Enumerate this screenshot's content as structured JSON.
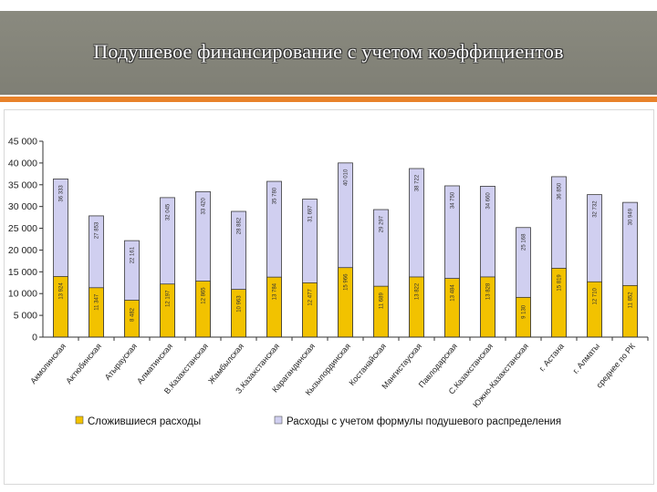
{
  "slide": {
    "title": "Подушевое финансирование с учетом коэффициентов"
  },
  "colors": {
    "accent": "#e8822a",
    "title_bar": "#84847a",
    "series_actual": "#f2c200",
    "series_formula": "#d0cff0"
  },
  "chart_data": {
    "type": "bar",
    "stacked": false,
    "overlapped": true,
    "categories": [
      "Акмолинская",
      "Актюбинская",
      "Атырауская",
      "Алматинская",
      "В.Казахстанская",
      "Жамбылская",
      "З.Казахстанская",
      "Карагандинская",
      "Кызылординская",
      "Костанайская",
      "Мангистауская",
      "Павлодарская",
      "С.Казахстанская",
      "Южно-Казахстанская",
      "г. Астана",
      "г. Алматы",
      "среднее по РК"
    ],
    "series": [
      {
        "name": "Сложившиеся расходы",
        "values": [
          13924,
          11347,
          8482,
          12197,
          12865,
          10963,
          13784,
          12477,
          15966,
          11689,
          13822,
          13484,
          13828,
          9130,
          15819,
          12710,
          11852
        ]
      },
      {
        "name": "Расходы с учетом формулы подушевого распределения",
        "values": [
          36333,
          27853,
          22161,
          32045,
          33420,
          28882,
          35780,
          31697,
          40010,
          29297,
          38722,
          34750,
          34660,
          25168,
          36850,
          32732,
          30949
        ]
      }
    ],
    "label_texts": [
      [
        "13 924",
        "11 347",
        "8 482",
        "12 197",
        "12 865",
        "10 963",
        "13 784",
        "12 477",
        "15 966",
        "11 689",
        "13 822",
        "13 484",
        "13 828",
        "9 130",
        "15 819",
        "12 710",
        "11 852"
      ],
      [
        "36 333",
        "27 853",
        "22 161",
        "32 045",
        "33 420",
        "28 882",
        "35 780",
        "31 697",
        "40 010",
        "29 297",
        "38 722",
        "34 750",
        "34 660",
        "25 168",
        "36 850",
        "32 732",
        "30 949"
      ]
    ],
    "y_ticks": [
      "0",
      "5 000",
      "10 000",
      "15 000",
      "20 000",
      "25 000",
      "30 000",
      "35 000",
      "40 000",
      "45 000"
    ],
    "ylim": [
      0,
      45000
    ],
    "grid": false,
    "legend_position": "bottom"
  }
}
